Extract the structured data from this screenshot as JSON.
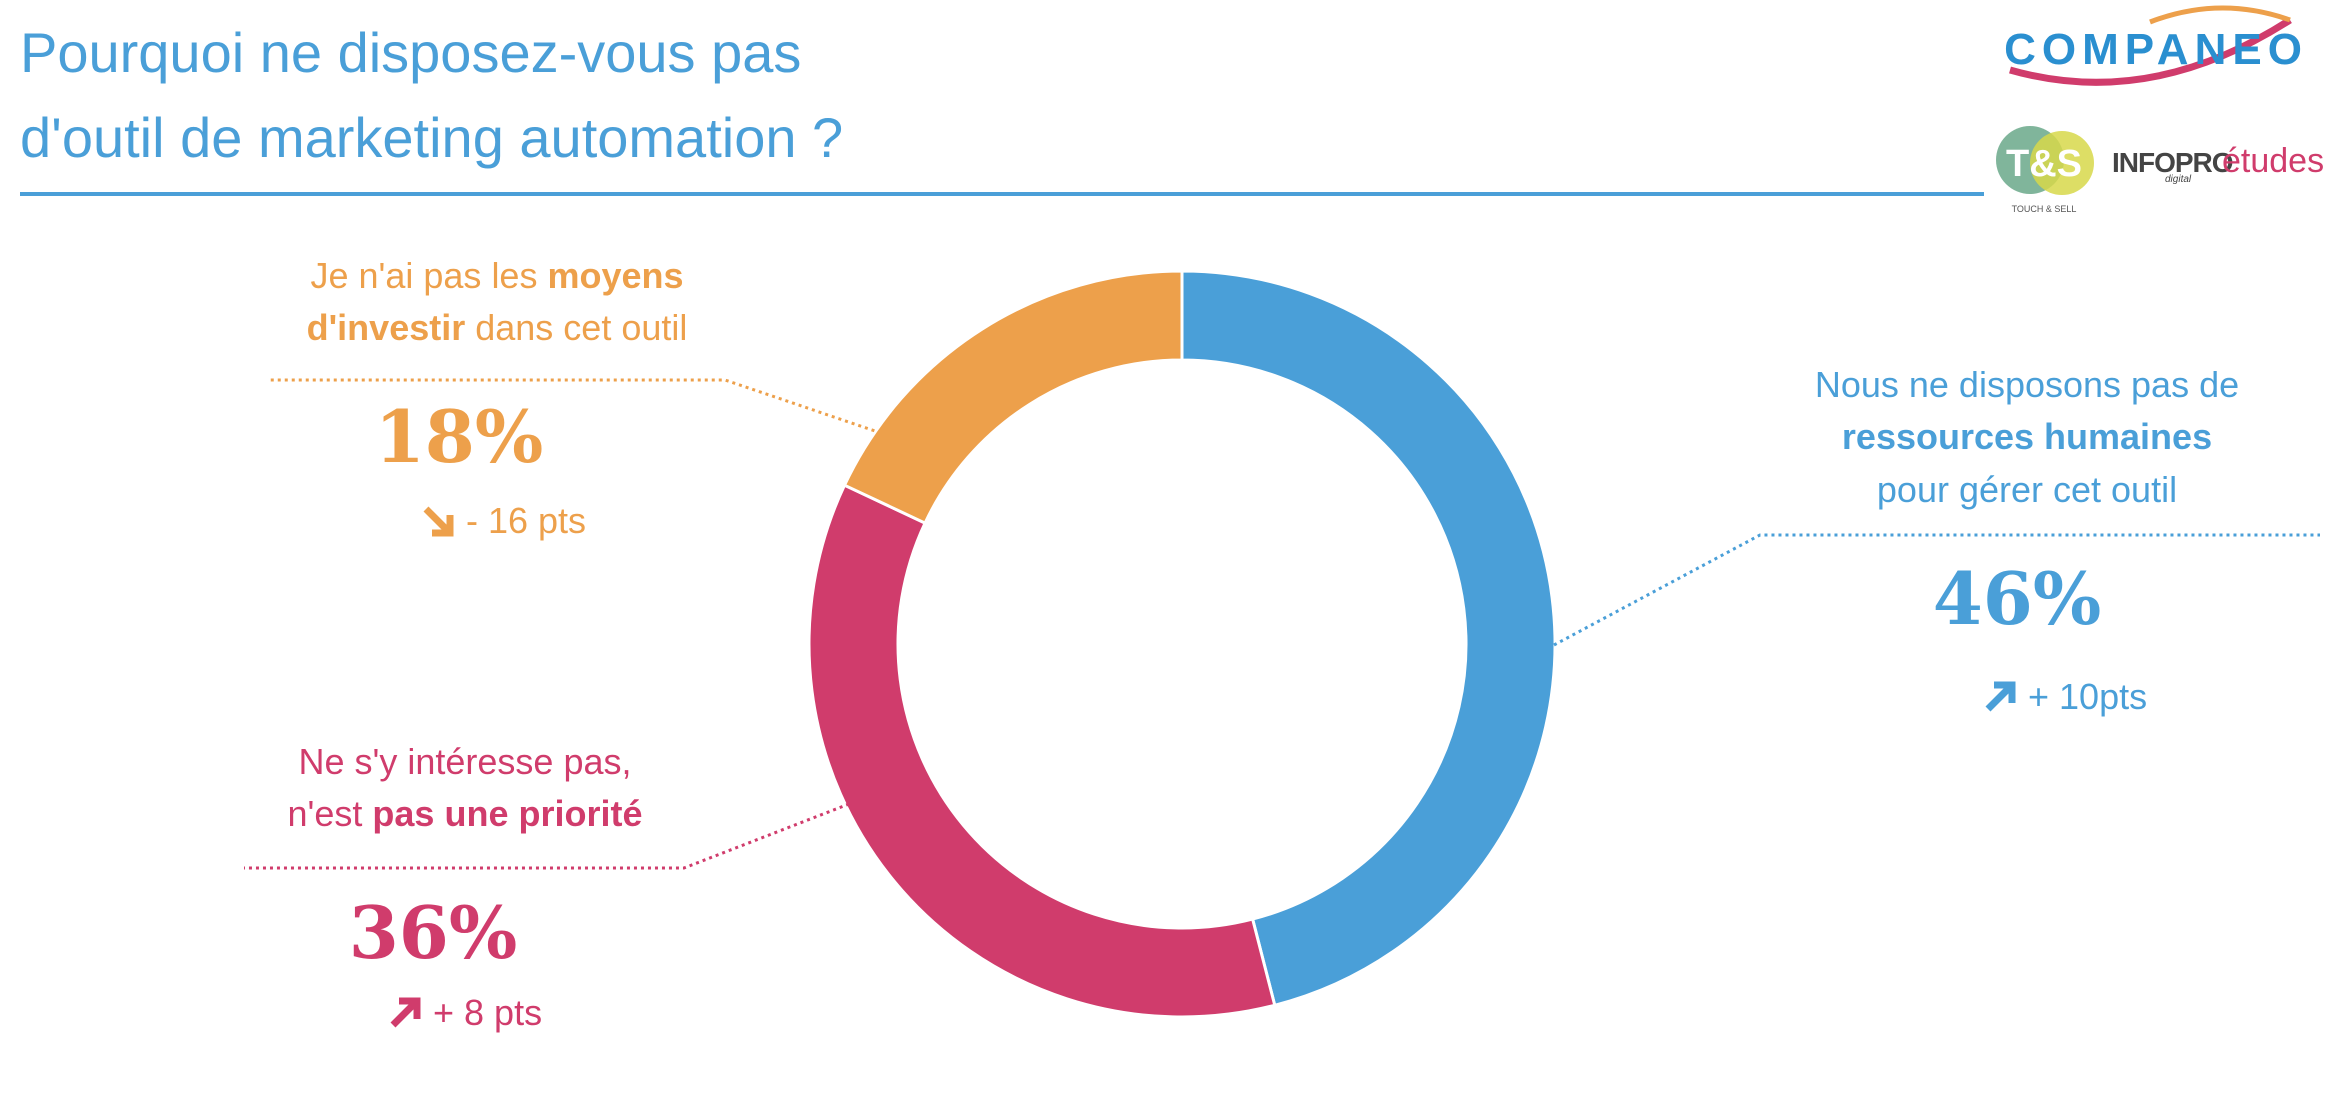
{
  "chart_data": {
    "type": "donut",
    "title": [
      "Pourquoi ne disposez-vous pas",
      "d'outil de marketing automation ?"
    ],
    "categories": [
      [
        [
          {
            "text": "Nous ne disposons pas de",
            "bold": false
          }
        ],
        [
          {
            "text": "ressources humaines",
            "bold": true
          }
        ],
        [
          {
            "text": "pour gérer cet outil",
            "bold": false
          }
        ]
      ],
      [
        [
          {
            "text": "Ne s'y intéresse pas,",
            "bold": false
          }
        ],
        [
          {
            "text": "n'est ",
            "bold": false
          },
          {
            "text": "pas une priorité",
            "bold": true
          }
        ]
      ],
      [
        [
          {
            "text": "Je n'ai pas les ",
            "bold": false
          },
          {
            "text": "moyens",
            "bold": true
          }
        ],
        [
          {
            "text": "d'investir",
            "bold": true
          },
          {
            "text": " dans cet outil",
            "bold": false
          }
        ]
      ]
    ],
    "values": [
      46,
      36,
      18
    ],
    "value_labels": [
      "46%",
      "36%",
      "18%"
    ],
    "changes": [
      "+ 10pts",
      "+ 8 pts",
      "- 16 pts"
    ],
    "colors": [
      "#4a9fd8",
      "#d03c6c",
      "#eda04b"
    ],
    "logos": {
      "companeo": "COMPANEO",
      "ts": "T&S",
      "ts_sub": "TOUCH & SELL",
      "infopro": "INFOPRO",
      "infopro_sub": "digital",
      "etudes": "études"
    }
  }
}
